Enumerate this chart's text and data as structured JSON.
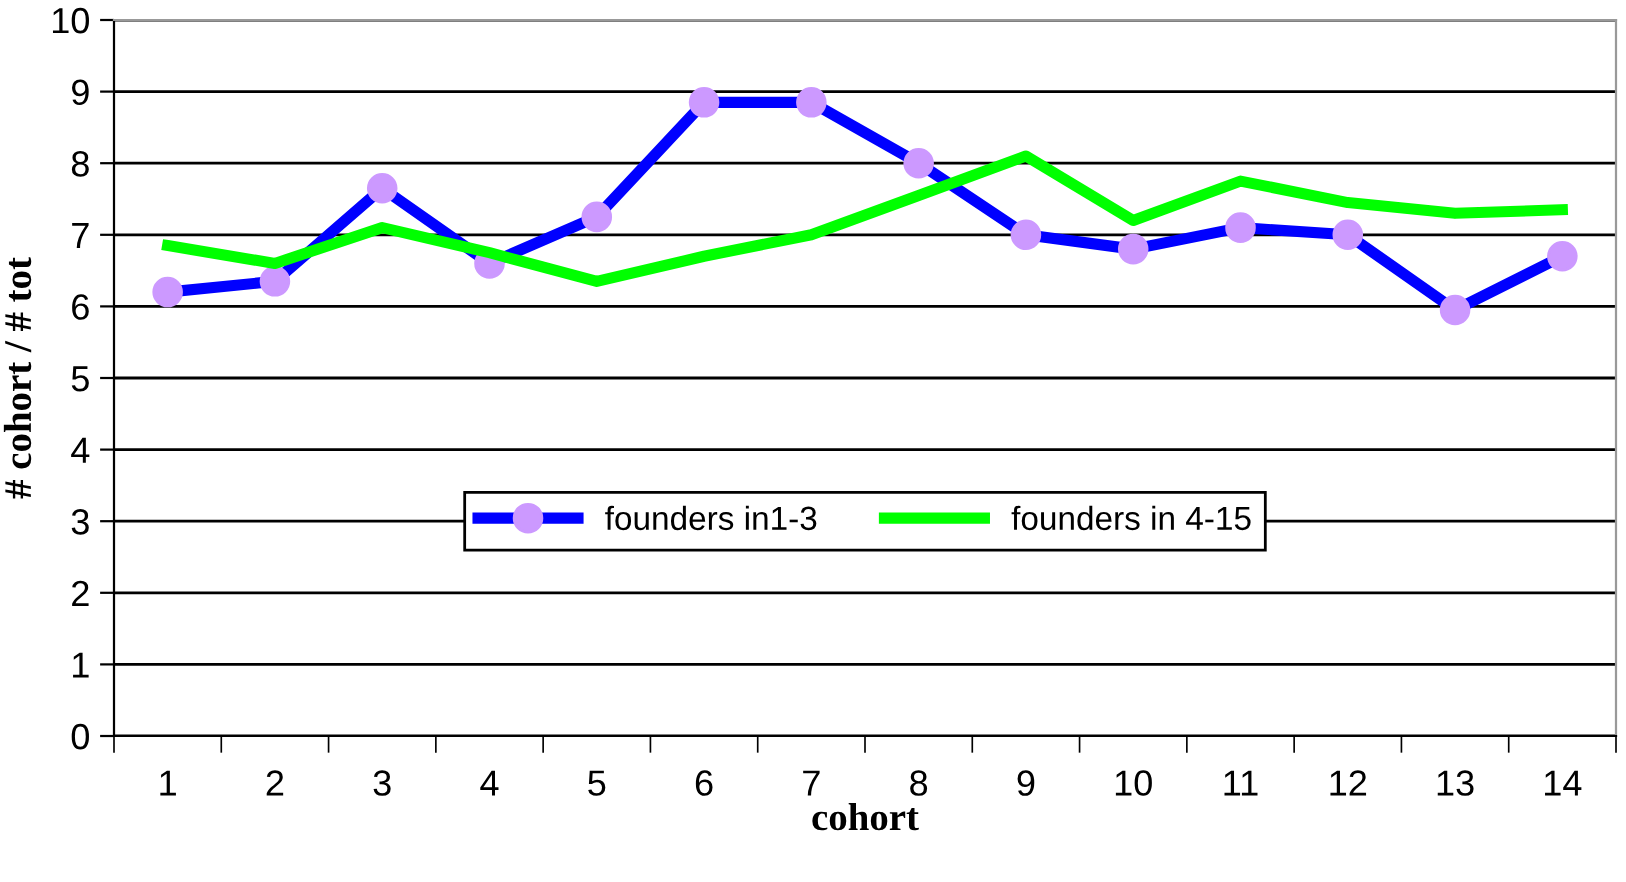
{
  "chart_data": {
    "type": "line",
    "xlabel": "cohort",
    "ylabel": "# cohort / # tot",
    "categories": [
      "1",
      "2",
      "3",
      "4",
      "5",
      "6",
      "7",
      "8",
      "9",
      "10",
      "11",
      "12",
      "13",
      "14"
    ],
    "series": [
      {
        "name": "founders in1-3",
        "color": "#0000ff",
        "marker": "circle",
        "values": [
          6.2,
          6.35,
          7.65,
          6.6,
          7.25,
          8.85,
          8.85,
          8.0,
          7.0,
          6.8,
          7.1,
          7.0,
          5.95,
          6.7
        ]
      },
      {
        "name": "founders in 4-15",
        "color": "#00ff00",
        "marker": "none",
        "values": [
          6.85,
          6.6,
          7.1,
          6.75,
          6.35,
          6.7,
          7.0,
          7.55,
          8.1,
          7.2,
          7.75,
          7.45,
          7.3,
          7.35
        ]
      }
    ],
    "ylim": [
      0,
      10
    ],
    "yticks": [
      0,
      1,
      2,
      3,
      4,
      5,
      6,
      7,
      8,
      9,
      10
    ],
    "grid": "y",
    "legend": "center",
    "line_style": "solid"
  }
}
